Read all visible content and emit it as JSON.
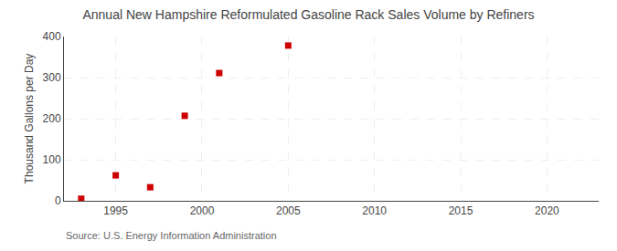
{
  "chart_data": {
    "type": "scatter",
    "title": "Annual New Hampshire Reformulated Gasoline Rack Sales Volume by Refiners",
    "ylabel": "Thousand Gallons per Day",
    "annotations": [
      "Source: U.S. Energy Information Administration"
    ],
    "x": [
      1993,
      1995,
      1997,
      1999,
      2001,
      2005
    ],
    "values": [
      5,
      62,
      33,
      207,
      311,
      378
    ],
    "color": "#cc0000",
    "marker": "square",
    "xlim": [
      1992,
      2023
    ],
    "ylim": [
      0,
      400
    ],
    "xticks": [
      1995,
      2000,
      2005,
      2010,
      2015,
      2020
    ],
    "yticks": [
      0,
      100,
      200,
      300,
      400
    ],
    "grid": true
  }
}
